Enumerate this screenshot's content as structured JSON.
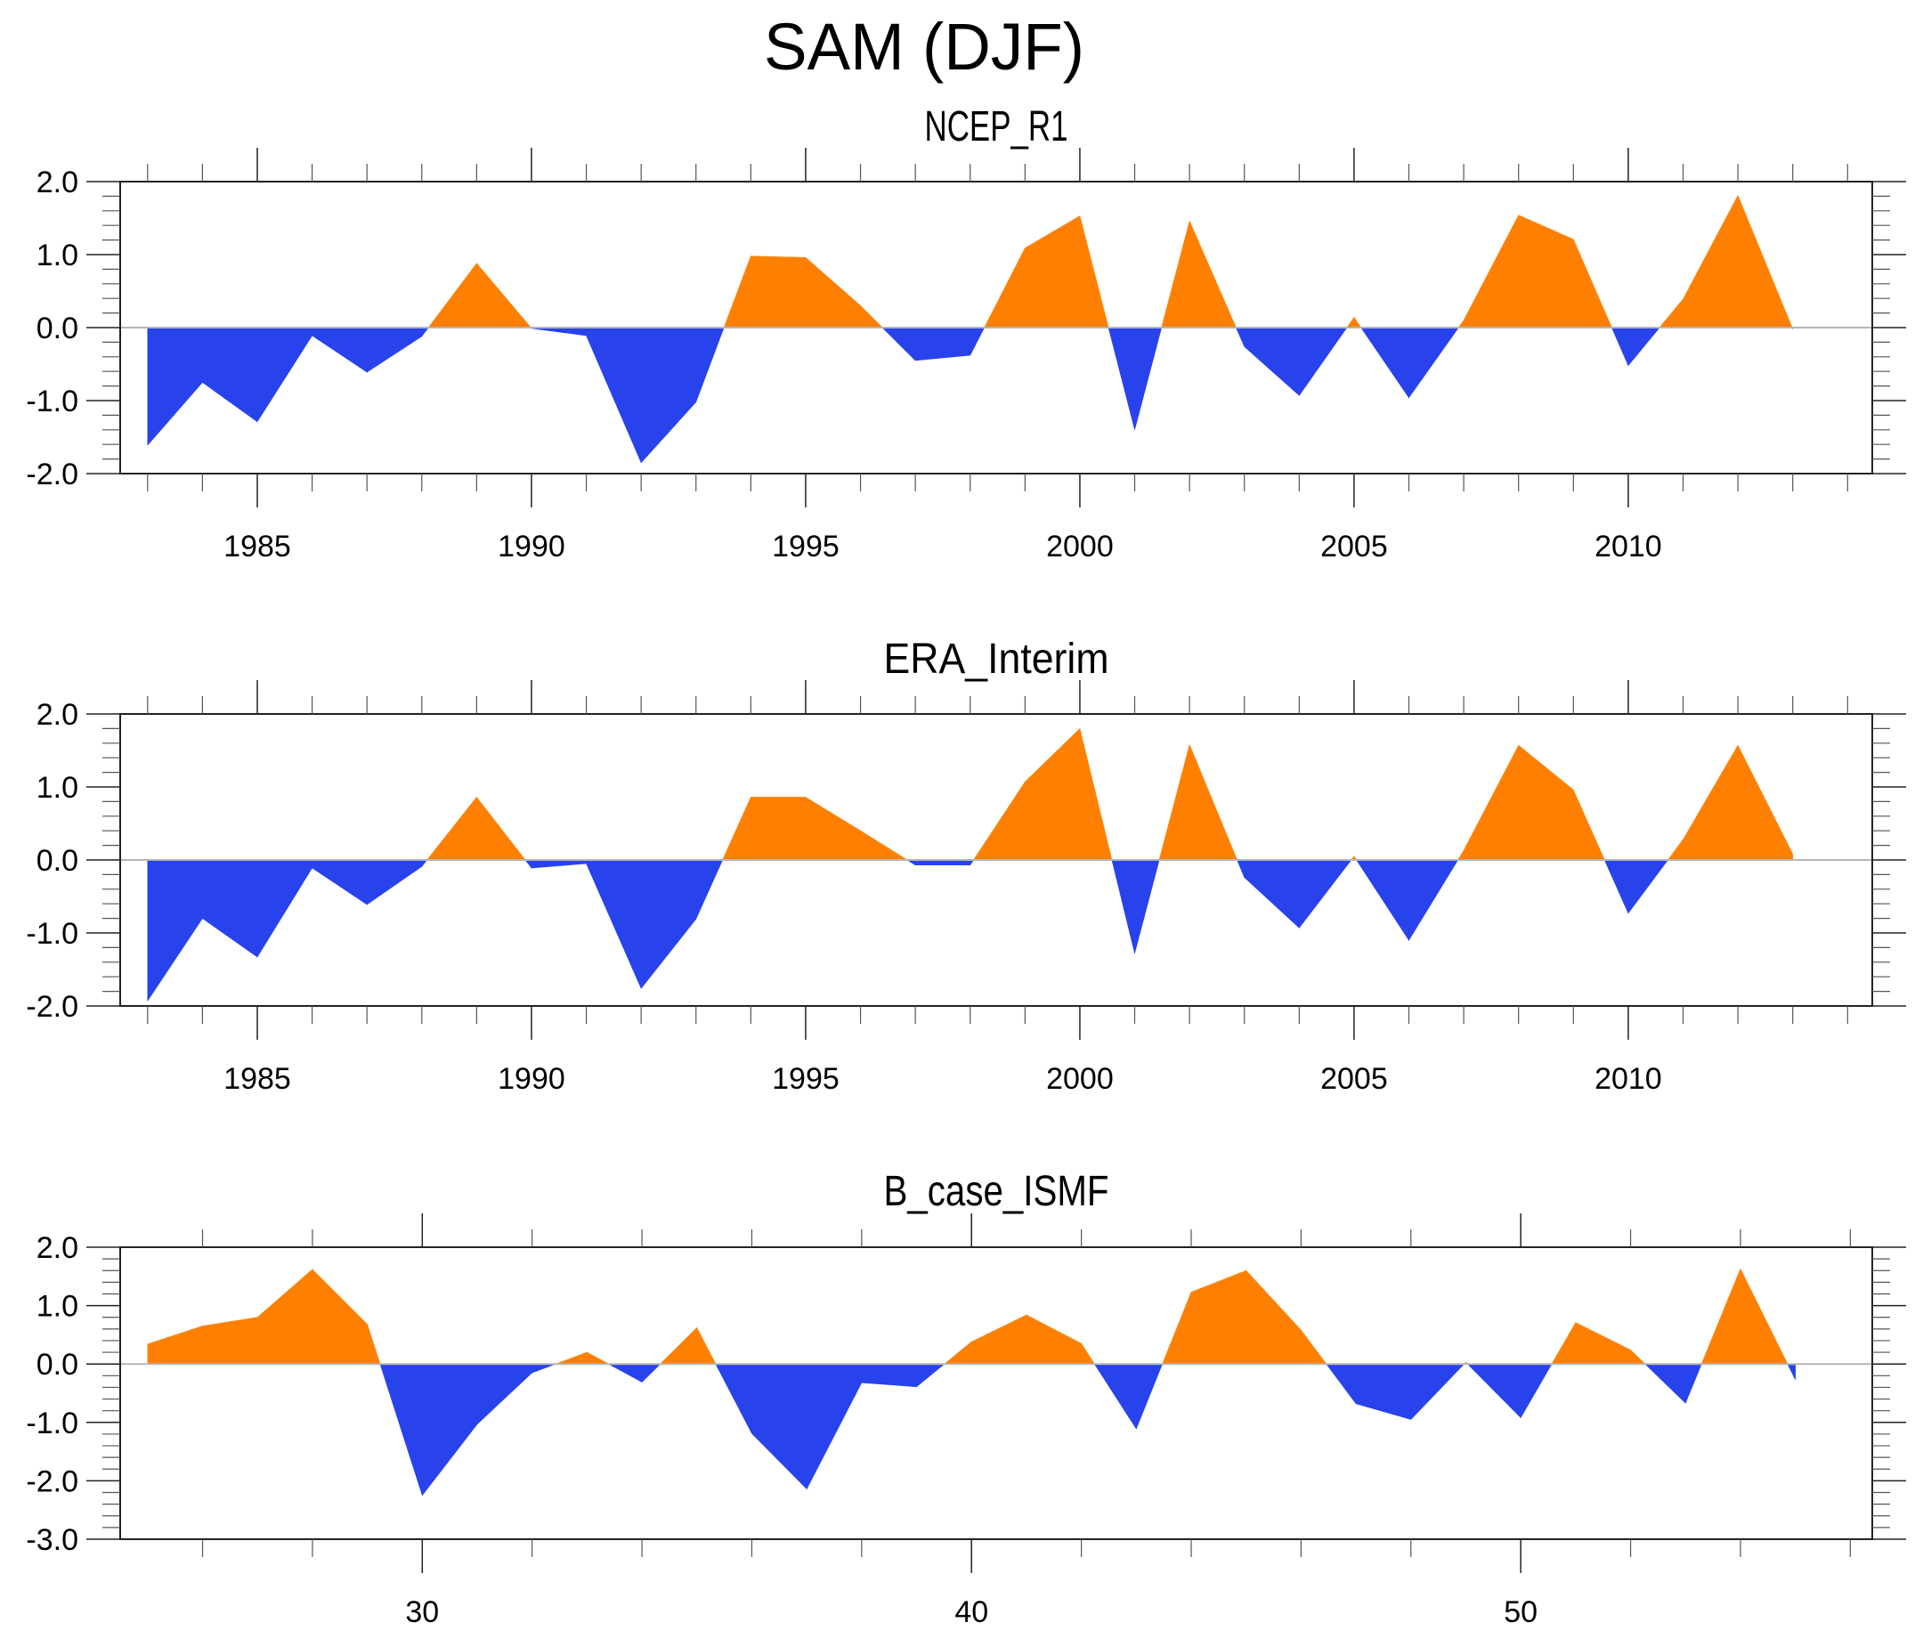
{
  "title": "SAM (DJF)",
  "colors": {
    "positive": "#FF8000",
    "negative": "#2843EB",
    "zero_line": "#B5B5B5"
  },
  "chart_data": [
    {
      "type": "area",
      "title": "NCEP_R1",
      "xlabel": "",
      "ylabel": "",
      "xlim": [
        1982.5,
        2014.45
      ],
      "ylim": [
        -2.0,
        2.0
      ],
      "x_major_ticks": [
        1985,
        1990,
        1995,
        2000,
        2005,
        2010
      ],
      "x_tick_labels": [
        "1985",
        "1990",
        "1995",
        "2000",
        "2005",
        "2010"
      ],
      "x_minor_step": 1,
      "y_major_ticks": [
        -2.0,
        -1.0,
        0.0,
        1.0,
        2.0
      ],
      "y_tick_labels": [
        "-2.0",
        "-1.0",
        "0.0",
        "1.0",
        "2.0"
      ],
      "y_minor_step": 0.2,
      "grid": false,
      "x": [
        1983,
        1984,
        1985,
        1986,
        1987,
        1988,
        1989,
        1990,
        1991,
        1992,
        1993,
        1994,
        1995,
        1996,
        1997,
        1998,
        1999,
        2000,
        2001,
        2002,
        2003,
        2004,
        2005,
        2006,
        2007,
        2008,
        2009,
        2010,
        2011,
        2012,
        2013
      ],
      "values": [
        -1.61,
        -0.75,
        -1.29,
        -0.11,
        -0.61,
        -0.12,
        0.88,
        -0.01,
        -0.11,
        -1.85,
        -1.02,
        0.98,
        0.96,
        0.3,
        -0.45,
        -0.38,
        1.09,
        1.53,
        -1.4,
        1.46,
        -0.26,
        -0.93,
        0.14,
        -0.96,
        0.1,
        1.54,
        1.21,
        -0.52,
        0.39,
        1.81,
        -0.02
      ]
    },
    {
      "type": "area",
      "title": "ERA_Interim",
      "xlabel": "",
      "ylabel": "",
      "xlim": [
        1982.5,
        2014.45
      ],
      "ylim": [
        -2.0,
        2.0
      ],
      "x_major_ticks": [
        1985,
        1990,
        1995,
        2000,
        2005,
        2010
      ],
      "x_tick_labels": [
        "1985",
        "1990",
        "1995",
        "2000",
        "2005",
        "2010"
      ],
      "x_minor_step": 1,
      "y_major_ticks": [
        -2.0,
        -1.0,
        0.0,
        1.0,
        2.0
      ],
      "y_tick_labels": [
        "-2.0",
        "-1.0",
        "0.0",
        "1.0",
        "2.0"
      ],
      "y_minor_step": 0.2,
      "grid": false,
      "x": [
        1983,
        1984,
        1985,
        1986,
        1987,
        1988,
        1989,
        1990,
        1991,
        1992,
        1993,
        1994,
        1995,
        1996,
        1997,
        1998,
        1999,
        2000,
        2001,
        2002,
        2003,
        2004,
        2005,
        2006,
        2007,
        2008,
        2009,
        2010,
        2011,
        2012,
        2013
      ],
      "values": [
        -1.93,
        -0.8,
        -1.33,
        -0.11,
        -0.61,
        -0.09,
        0.86,
        -0.11,
        -0.05,
        -1.76,
        -0.81,
        0.86,
        0.86,
        0.4,
        -0.07,
        -0.07,
        1.07,
        1.8,
        -1.28,
        1.58,
        -0.24,
        -0.93,
        0.05,
        -1.1,
        0.13,
        1.57,
        0.96,
        -0.73,
        0.28,
        1.57,
        0.08
      ]
    },
    {
      "type": "area",
      "title": "B_case_ISMF",
      "xlabel": "",
      "ylabel": "",
      "xlim": [
        24.5,
        56.4
      ],
      "ylim": [
        -3.0,
        2.0
      ],
      "x_major_ticks": [
        30,
        40,
        50
      ],
      "x_tick_labels": [
        "30",
        "40",
        "50"
      ],
      "x_minor_step": 2,
      "y_major_ticks": [
        -3.0,
        -2.0,
        -1.0,
        0.0,
        1.0,
        2.0
      ],
      "y_tick_labels": [
        "-3.0",
        "-2.0",
        "-1.0",
        "0.0",
        "1.0",
        "2.0"
      ],
      "y_minor_step": 0.2,
      "grid": false,
      "x": [
        25,
        26,
        27,
        28,
        29,
        30,
        31,
        32,
        33,
        34,
        35,
        36,
        37,
        38,
        39,
        40,
        41,
        42,
        43,
        44,
        45,
        46,
        47,
        48,
        49,
        50,
        51,
        52,
        53,
        54,
        55
      ],
      "values": [
        0.34,
        0.65,
        0.8,
        1.62,
        0.68,
        -2.25,
        -1.03,
        -0.15,
        0.2,
        -0.31,
        0.62,
        -1.19,
        -2.14,
        -0.32,
        -0.39,
        0.38,
        0.84,
        0.35,
        -1.11,
        1.23,
        1.6,
        0.58,
        -0.68,
        -0.95,
        0.03,
        -0.92,
        0.71,
        0.24,
        -0.67,
        1.63,
        -0.27
      ]
    }
  ]
}
